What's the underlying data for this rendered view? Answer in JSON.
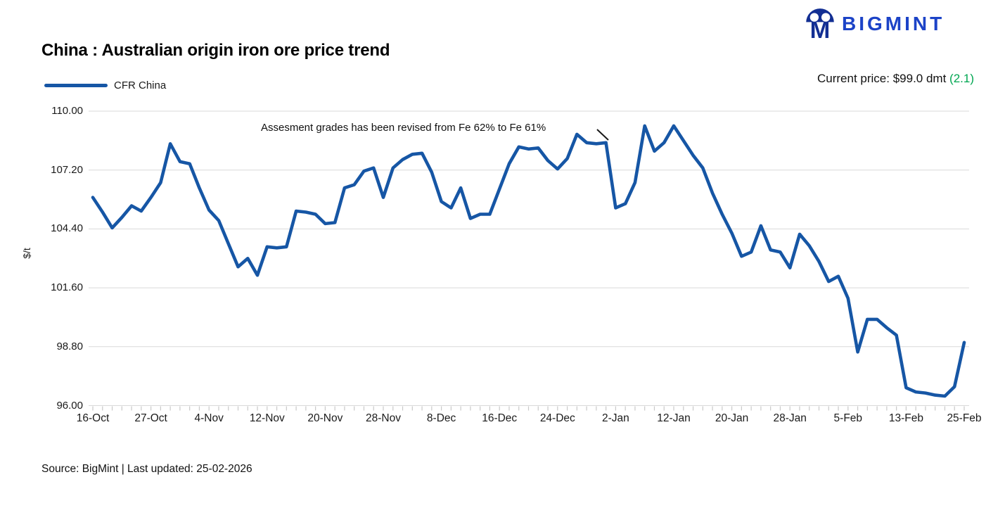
{
  "brand": {
    "name": "BIGMINT"
  },
  "header": {
    "title": "China : Australian origin iron ore price trend",
    "current_price_label": "Current price: $99.0 dmt ",
    "current_price_change": "(2.1)"
  },
  "legend": {
    "series_label": "CFR China"
  },
  "annotation": {
    "text": "Assesment grades has been revised from Fe 62% to Fe 61%"
  },
  "footer": {
    "source_text": "Source: BigMint | Last updated: 25-02-2026"
  },
  "colors": {
    "line": "#1656a5",
    "logo_icon": "#132f93",
    "logo_text": "#1c43c7",
    "positive_green": "#00a651",
    "grid": "#d9d9d9",
    "tick": "#c9c9c9",
    "callout": "#1a1a1a"
  },
  "chart_data": {
    "type": "line",
    "title": "China : Australian origin iron ore price trend",
    "xlabel": "",
    "ylabel": "$/t",
    "ylim": [
      96,
      110
    ],
    "ytick_labels": [
      "96.00",
      "98.80",
      "101.60",
      "104.40",
      "107.20",
      "110.00"
    ],
    "x_tick_labels": [
      "16-Oct",
      "27-Oct",
      "4-Nov",
      "12-Nov",
      "20-Nov",
      "28-Nov",
      "8-Dec",
      "16-Dec",
      "24-Dec",
      "2-Jan",
      "12-Jan",
      "20-Jan",
      "28-Jan",
      "5-Feb",
      "13-Feb",
      "25-Feb"
    ],
    "label_every": 6,
    "grid": "horizontal",
    "legend_position": "top-left",
    "annotation": "Assesment grades has been revised from Fe 62% to Fe 61%",
    "series": [
      {
        "name": "CFR China",
        "color": "#1656a5",
        "values": [
          105.9,
          105.2,
          104.45,
          104.95,
          105.5,
          105.25,
          105.9,
          106.6,
          108.45,
          107.6,
          107.5,
          106.35,
          105.3,
          104.8,
          103.7,
          102.6,
          103.0,
          102.2,
          103.55,
          103.5,
          103.55,
          105.25,
          105.2,
          105.1,
          104.65,
          104.7,
          106.35,
          106.5,
          107.15,
          107.3,
          105.9,
          107.3,
          107.7,
          107.95,
          108.0,
          107.1,
          105.7,
          105.4,
          106.35,
          104.9,
          105.1,
          105.1,
          106.3,
          107.5,
          108.3,
          108.2,
          108.25,
          107.65,
          107.25,
          107.75,
          108.9,
          108.5,
          108.45,
          108.5,
          105.4,
          105.6,
          106.6,
          109.3,
          108.1,
          108.5,
          109.3,
          108.6,
          107.9,
          107.3,
          106.1,
          105.1,
          104.2,
          103.1,
          103.3,
          104.55,
          103.4,
          103.3,
          102.55,
          104.15,
          103.6,
          102.85,
          101.9,
          102.15,
          101.1,
          98.55,
          100.1,
          100.1,
          99.7,
          99.35,
          96.85,
          96.65,
          96.6,
          96.5,
          96.45,
          96.9,
          99.0
        ]
      }
    ]
  }
}
